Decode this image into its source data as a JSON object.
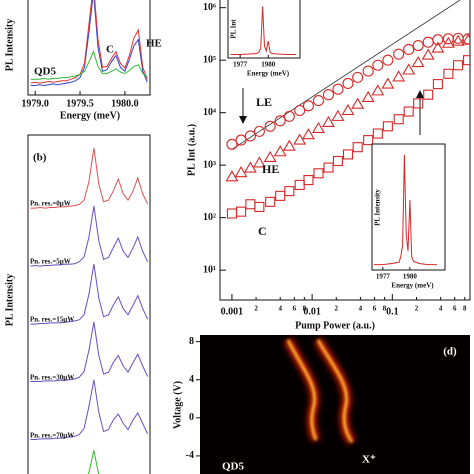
{
  "chart_data": [
    {
      "type": "line",
      "xlabel": "Energy (meV)",
      "ylabel": "PL Intensity",
      "annotations": [
        "QD5",
        "C",
        "HE"
      ],
      "x": [
        1978.95,
        1979.0,
        1979.05,
        1979.1,
        1979.15,
        1979.2,
        1979.25,
        1979.3,
        1979.35,
        1979.4,
        1979.45,
        1979.5,
        1979.55,
        1979.6,
        1979.65,
        1979.7,
        1979.75,
        1979.8,
        1979.85,
        1979.9,
        1979.95,
        1980.0,
        1980.05,
        1980.1,
        1980.15,
        1980.2,
        1980.25
      ],
      "xlim": [
        1978.92,
        1980.28
      ],
      "xticks": [
        {
          "value": 1979,
          "label": "1979.0"
        },
        1979.5,
        {
          "value": 1980,
          "label": "1980.0"
        }
      ],
      "ylim": [
        0,
        1.2
      ],
      "series": [
        {
          "color": "#3344cc",
          "values": [
            0.12,
            0.12,
            0.13,
            0.12,
            0.13,
            0.14,
            0.13,
            0.14,
            0.15,
            0.16,
            0.18,
            0.22,
            0.35,
            0.8,
            1.3,
            0.6,
            0.3,
            0.32,
            0.42,
            0.5,
            0.35,
            0.3,
            0.45,
            0.62,
            0.7,
            0.3,
            0.16
          ]
        },
        {
          "color": "#dd3333",
          "values": [
            0.15,
            0.16,
            0.15,
            0.16,
            0.17,
            0.16,
            0.17,
            0.18,
            0.18,
            0.2,
            0.22,
            0.26,
            0.4,
            0.9,
            1.4,
            0.7,
            0.35,
            0.36,
            0.46,
            0.55,
            0.4,
            0.34,
            0.5,
            0.72,
            0.82,
            0.35,
            0.2
          ]
        },
        {
          "color": "#33bb33",
          "values": [
            0.2,
            0.2,
            0.2,
            0.21,
            0.2,
            0.21,
            0.21,
            0.22,
            0.22,
            0.23,
            0.24,
            0.26,
            0.3,
            0.42,
            0.55,
            0.36,
            0.27,
            0.27,
            0.3,
            0.33,
            0.29,
            0.27,
            0.31,
            0.36,
            0.38,
            0.27,
            0.23
          ]
        }
      ]
    },
    {
      "type": "line",
      "panel_label": "(b)",
      "ylabel": "PL Intensity",
      "series": [
        {
          "name": "Pn. res.=0μW",
          "color": "#e05050",
          "values": [
            0.03,
            0.03,
            0.04,
            0.03,
            0.04,
            0.04,
            0.05,
            0.05,
            0.06,
            0.07,
            0.09,
            0.16,
            0.46,
            1.0,
            0.42,
            0.13,
            0.16,
            0.31,
            0.5,
            0.26,
            0.16,
            0.3,
            0.52,
            0.26,
            0.1
          ]
        },
        {
          "name": "Pn. res.=5μW",
          "color": "#6a4fc0",
          "values": [
            0.03,
            0.04,
            0.03,
            0.04,
            0.04,
            0.05,
            0.05,
            0.06,
            0.06,
            0.07,
            0.1,
            0.18,
            0.5,
            1.0,
            0.44,
            0.14,
            0.17,
            0.33,
            0.48,
            0.27,
            0.17,
            0.32,
            0.5,
            0.27,
            0.1
          ]
        },
        {
          "name": "Pn. res.=15μW",
          "color": "#6a4fc0",
          "values": [
            0.03,
            0.03,
            0.04,
            0.04,
            0.05,
            0.05,
            0.05,
            0.06,
            0.07,
            0.08,
            0.1,
            0.18,
            0.52,
            1.0,
            0.45,
            0.15,
            0.18,
            0.34,
            0.47,
            0.28,
            0.18,
            0.33,
            0.49,
            0.28,
            0.11
          ]
        },
        {
          "name": "Pn. res.=30μW",
          "color": "#6a4fc0",
          "values": [
            0.04,
            0.04,
            0.04,
            0.05,
            0.05,
            0.05,
            0.06,
            0.06,
            0.07,
            0.08,
            0.11,
            0.2,
            0.55,
            1.0,
            0.46,
            0.16,
            0.19,
            0.35,
            0.46,
            0.29,
            0.19,
            0.34,
            0.48,
            0.29,
            0.12
          ]
        },
        {
          "name": "Pn. res.=70μW",
          "color": "#6a4fc0",
          "values": [
            0.04,
            0.04,
            0.05,
            0.05,
            0.05,
            0.06,
            0.06,
            0.07,
            0.08,
            0.09,
            0.12,
            0.22,
            0.58,
            1.0,
            0.48,
            0.17,
            0.2,
            0.36,
            0.45,
            0.3,
            0.2,
            0.35,
            0.47,
            0.3,
            0.13
          ]
        },
        {
          "color": "#33bb33",
          "values": [
            0.05,
            0.05,
            0.05,
            0.05,
            0.06,
            0.06,
            0.06,
            0.07,
            0.08,
            0.09,
            0.12,
            0.2,
            0.45,
            0.8,
            0.4,
            0.15,
            0.16,
            0.25,
            0.3,
            0.2,
            0.15,
            0.22,
            0.28,
            0.18,
            0.1
          ]
        }
      ]
    },
    {
      "type": "scatter",
      "xlabel": "Pump Power (a.u.)",
      "ylabel": "PL Int (a.u.)",
      "log_x": true,
      "log_y": true,
      "xlim": [
        0.00071,
        0.93
      ],
      "ylim": [
        2.7,
        1400000
      ],
      "xticks": [
        0.001,
        {
          "value": 0.002,
          "label": "2"
        },
        {
          "value": 0.004,
          "label": "4"
        },
        {
          "value": 0.006,
          "label": "6"
        },
        {
          "value": 0.008,
          "label": "8"
        },
        0.01,
        {
          "value": 0.02,
          "label": "2"
        },
        {
          "value": 0.04,
          "label": "4"
        },
        {
          "value": 0.06,
          "label": "6"
        },
        {
          "value": 0.08,
          "label": "8"
        },
        0.1,
        {
          "value": 0.2,
          "label": "2"
        },
        {
          "value": 0.4,
          "label": "4"
        },
        {
          "value": 0.6,
          "label": "6"
        },
        {
          "value": 0.8,
          "label": "8"
        }
      ],
      "yticks": [
        {
          "value": 10,
          "label": "10¹"
        },
        {
          "value": 100,
          "label": "10²"
        },
        {
          "value": 1000,
          "label": "10³"
        },
        {
          "value": 10000,
          "label": "10⁴"
        },
        {
          "value": 100000,
          "label": "10⁵"
        },
        {
          "value": 1000000,
          "label": "10⁶"
        }
      ],
      "x": [
        0.001,
        0.0013,
        0.0017,
        0.0022,
        0.003,
        0.004,
        0.0052,
        0.007,
        0.009,
        0.012,
        0.016,
        0.021,
        0.028,
        0.037,
        0.05,
        0.066,
        0.088,
        0.12,
        0.16,
        0.21,
        0.28,
        0.37,
        0.5,
        0.66,
        0.88
      ],
      "series": [
        {
          "name": "LE",
          "marker": "circle",
          "color": "#d62828",
          "values": [
            2500,
            3000,
            3600,
            4400,
            5500,
            7000,
            8500,
            11000,
            13500,
            17000,
            22000,
            28000,
            36000,
            47000,
            62000,
            80000,
            100000,
            130000,
            160000,
            190000,
            220000,
            245000,
            255000,
            260000,
            255000
          ]
        },
        {
          "name": "HE",
          "marker": "triangle",
          "color": "#d62828",
          "values": [
            600,
            720,
            880,
            1100,
            1400,
            1800,
            2300,
            3000,
            3800,
            5000,
            6500,
            8500,
            11000,
            14500,
            19500,
            26000,
            35000,
            48000,
            65000,
            90000,
            125000,
            170000,
            210000,
            230000,
            240000
          ]
        },
        {
          "name": "C",
          "marker": "square",
          "color": "#d62828",
          "values": [
            120,
            130,
            180,
            160,
            200,
            260,
            320,
            420,
            520,
            700,
            900,
            1200,
            1600,
            2200,
            3000,
            4000,
            5500,
            7500,
            10500,
            15000,
            22000,
            35000,
            55000,
            80000,
            100000
          ]
        }
      ],
      "fit_line": {
        "x": [
          0.001,
          0.7
        ],
        "values": [
          2000,
          1400000
        ],
        "color": "#333333"
      },
      "insets": [
        {
          "ylabel": "PL Int",
          "xlabel": "Energy (meV)",
          "xlim": [
            1975.7,
            1983.4
          ],
          "xticks": [
            1977,
            1980
          ],
          "ylim": [
            0,
            1.05
          ],
          "color": "#d62828",
          "x": [
            1976,
            1977,
            1978,
            1978.8,
            1979,
            1979.2,
            1979.4,
            1979.6,
            1979.8,
            1980,
            1980.2,
            1980.4,
            1981,
            1982,
            1983
          ],
          "values": [
            0.03,
            0.03,
            0.04,
            0.05,
            0.08,
            0.15,
            1.0,
            0.2,
            0.1,
            0.3,
            0.08,
            0.05,
            0.04,
            0.03,
            0.03
          ]
        },
        {
          "ylabel": "PL Intensity",
          "xlabel": "Energy (meV)",
          "xlim": [
            1975.8,
            1983.9
          ],
          "xticks": [
            1977,
            1980
          ],
          "ylim": [
            0,
            1.05
          ],
          "color": "#d62828",
          "x": [
            1976,
            1977,
            1978,
            1978.8,
            1979,
            1979.2,
            1979.4,
            1979.6,
            1979.8,
            1980,
            1980.2,
            1980.4,
            1981,
            1982,
            1983
          ],
          "values": [
            0.03,
            0.03,
            0.04,
            0.05,
            0.1,
            0.2,
            1.0,
            0.3,
            0.15,
            0.6,
            0.1,
            0.06,
            0.04,
            0.03,
            0.03
          ]
        }
      ]
    },
    {
      "type": "image",
      "panel_label": "(d)",
      "ylabel": "Voltage (V)",
      "ylim": [
        -5.9,
        8.7
      ],
      "yticks": [
        8,
        4,
        0,
        -4
      ],
      "annotations": [
        "QD5",
        "X⁺"
      ]
    }
  ]
}
